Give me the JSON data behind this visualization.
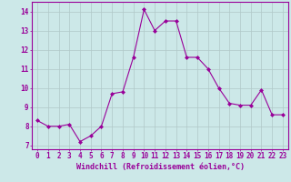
{
  "xlabel": "Windchill (Refroidissement éolien,°C)",
  "x": [
    0,
    1,
    2,
    3,
    4,
    5,
    6,
    7,
    8,
    9,
    10,
    11,
    12,
    13,
    14,
    15,
    16,
    17,
    18,
    19,
    20,
    21,
    22,
    23
  ],
  "y": [
    8.3,
    8.0,
    8.0,
    8.1,
    7.2,
    7.5,
    8.0,
    9.7,
    9.8,
    11.6,
    14.1,
    13.0,
    13.5,
    13.5,
    11.6,
    11.6,
    11.0,
    10.0,
    9.2,
    9.1,
    9.1,
    9.9,
    8.6,
    8.6
  ],
  "line_color": "#990099",
  "marker": "D",
  "marker_size": 2.0,
  "background_color": "#cce8e8",
  "grid_color": "#b0c8c8",
  "ylim": [
    6.8,
    14.5
  ],
  "xlim": [
    -0.5,
    23.5
  ],
  "yticks": [
    7,
    8,
    9,
    10,
    11,
    12,
    13,
    14
  ],
  "xticks": [
    0,
    1,
    2,
    3,
    4,
    5,
    6,
    7,
    8,
    9,
    10,
    11,
    12,
    13,
    14,
    15,
    16,
    17,
    18,
    19,
    20,
    21,
    22,
    23
  ],
  "tick_color": "#990099",
  "label_color": "#990099",
  "spine_color": "#990099",
  "font_size_label": 6.0,
  "font_size_tick": 5.5,
  "linewidth": 0.8
}
